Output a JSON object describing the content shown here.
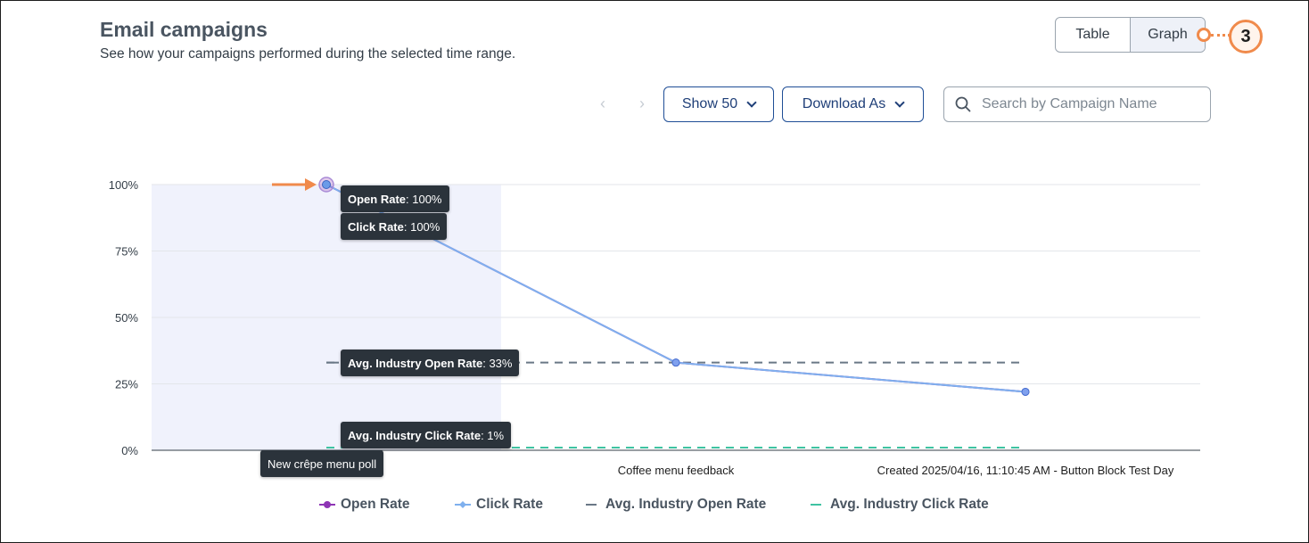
{
  "header": {
    "title": "Email campaigns",
    "subtitle": "See how your campaigns performed during the selected time range."
  },
  "view_toggle": {
    "table_label": "Table",
    "graph_label": "Graph",
    "selected": "Graph"
  },
  "callout": {
    "number": "3",
    "color": "#f08a4b"
  },
  "toolbar": {
    "prev_glyph": "‹",
    "next_glyph": "›",
    "show_label": "Show 50",
    "download_label": "Download As",
    "search_placeholder": "Search by Campaign Name"
  },
  "tooltips": {
    "open_rate_label": "Open Rate",
    "open_rate_value": ": 100%",
    "click_rate_label": "Click Rate",
    "click_rate_value": ": 100%",
    "avg_open_label": "Avg. Industry Open Rate",
    "avg_open_value": ": 33%",
    "avg_click_label": "Avg. Industry Click Rate",
    "avg_click_value": ": 1%",
    "category_label": "New crêpe menu poll"
  },
  "chart_data": {
    "type": "line",
    "categories": [
      "New crêpe menu poll",
      "Coffee menu feedback",
      "Created 2025/04/16, 11:10:45 AM - Button Block Test Day"
    ],
    "y_ticks": [
      "100%",
      "75%",
      "50%",
      "25%",
      "0%"
    ],
    "ylim": [
      0,
      100
    ],
    "highlighted_category": 0,
    "grid": true,
    "legend_position": "bottom",
    "series": [
      {
        "name": "Open Rate",
        "values": [
          100,
          33,
          22
        ],
        "color": "#8e35b5",
        "style": "solid"
      },
      {
        "name": "Click Rate",
        "values": [
          100,
          33,
          22
        ],
        "color": "#7fb0ee",
        "style": "solid"
      },
      {
        "name": "Avg. Industry Open Rate",
        "values": [
          33,
          33,
          33
        ],
        "color": "#6a7886",
        "style": "dashed"
      },
      {
        "name": "Avg. Industry Click Rate",
        "values": [
          1,
          1,
          1
        ],
        "color": "#3fc3a2",
        "style": "dashed"
      }
    ]
  }
}
